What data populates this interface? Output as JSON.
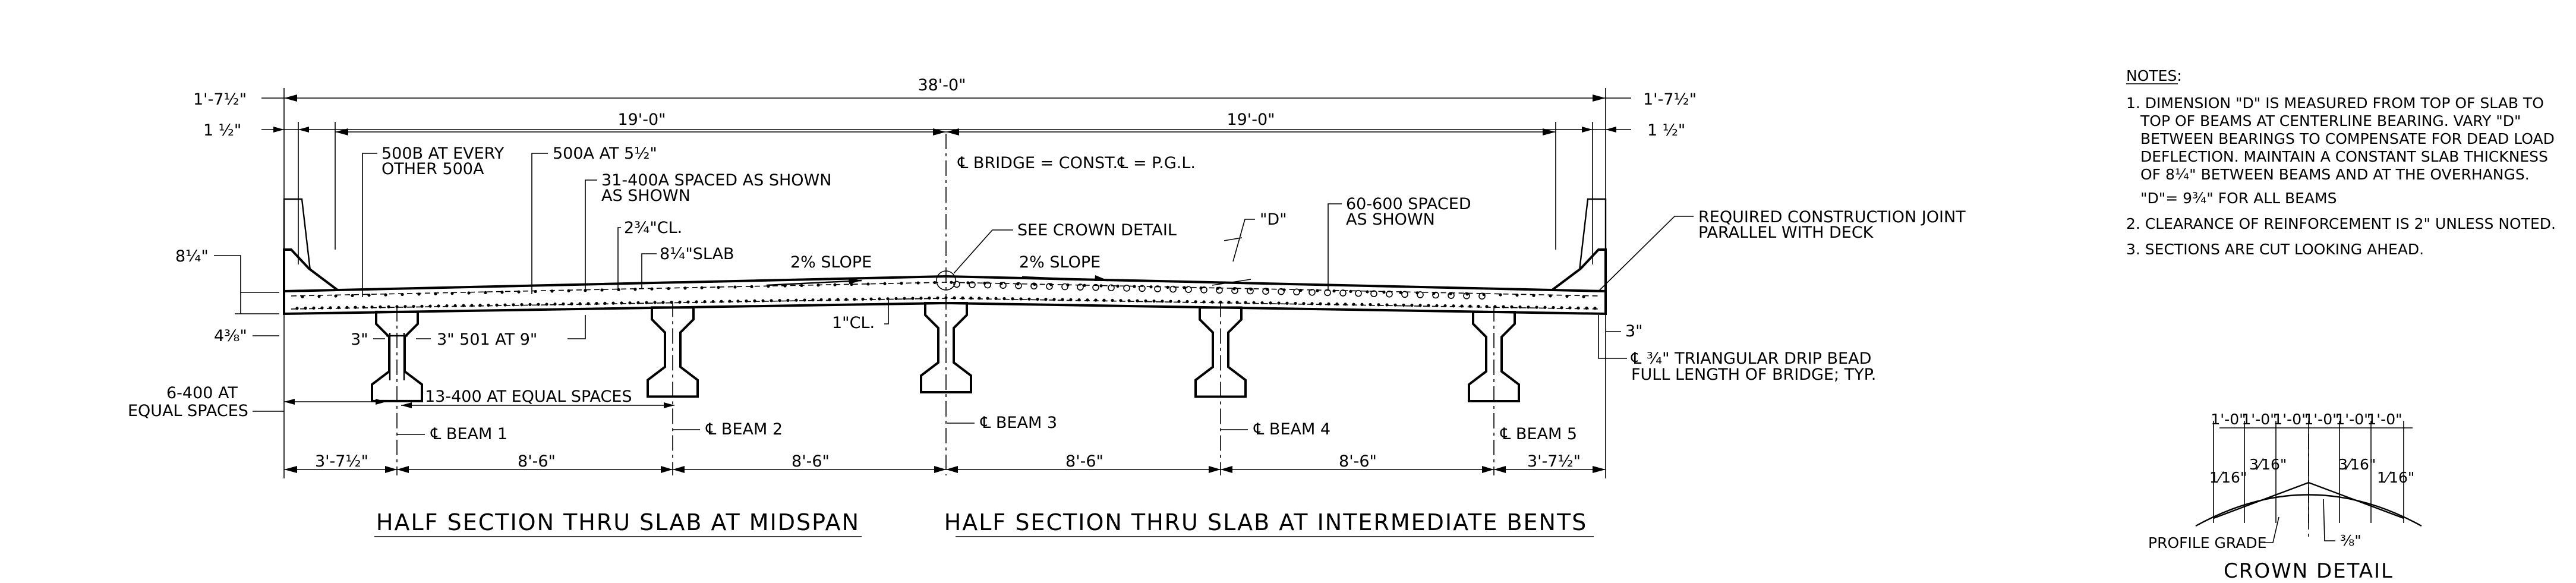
{
  "dims": {
    "overall": "38'-0\"",
    "left_overhang_top": "1'-7½\"",
    "right_overhang_top": "1'-7½\"",
    "left_barrier_offset": "1 ½\"",
    "right_barrier_offset": "1 ½\"",
    "left_half_width": "19'-0\"",
    "right_half_width": "19'-0\"",
    "slab_depth_left": "8¼\"",
    "dim_4_3_8": "4⅜\"",
    "dim_3_a": "3\"",
    "dim_3_b": "3\"",
    "dim_3_right": "3\"",
    "cl_1": "1\"CL.",
    "bottom_spans": [
      "3'-7½\"",
      "8'-6\"",
      "8'-6\"",
      "8'-6\"",
      "8'-6\"",
      "3'-7½\""
    ]
  },
  "labels": {
    "bar_500b_l1": "500B AT EVERY",
    "bar_500b_l2": "OTHER 500A",
    "bar_500a": "500A AT 5½\"",
    "bar_400a_l1": "31-400A SPACED AS SHOWN",
    "bar_400a_l2": "AS SHOWN",
    "clear_2_3_4": "2¾\"CL.",
    "slab_8_1_4": "8¼\"SLAB",
    "slope_left": "2% SLOPE",
    "slope_right": "2% SLOPE",
    "bridge_cl": "℄ BRIDGE = CONST.℄ = P.G.L.",
    "crown_detail_ref": "SEE CROWN DETAIL",
    "d_label": "\"D\"",
    "bar_600_l1": "60-600 SPACED",
    "bar_600_l2": "AS SHOWN",
    "joint_l1": "REQUIRED CONSTRUCTION JOINT",
    "joint_l2": "PARALLEL WITH DECK",
    "bar_501": "3\" 501 AT 9\"",
    "bar_6_400_l1": "6-400 AT",
    "bar_6_400_l2": "EQUAL SPACES",
    "bar_13_400": "13-400 AT EQUAL SPACES",
    "drip_l1": "℄ ¾\" TRIANGULAR DRIP BEAD",
    "drip_l2": "FULL LENGTH OF BRIDGE; TYP.",
    "beams": [
      "℄ BEAM 1",
      "℄ BEAM 2",
      "℄ BEAM 3",
      "℄ BEAM 4",
      "℄ BEAM 5"
    ]
  },
  "titles": {
    "midspan": "HALF SECTION THRU SLAB AT MIDSPAN",
    "bents": "HALF SECTION THRU SLAB AT INTERMEDIATE BENTS",
    "crown": "CROWN DETAIL"
  },
  "notes": {
    "heading": "NOTES:",
    "lines": [
      "1. DIMENSION \"D\" IS MEASURED FROM TOP OF SLAB TO",
      "TOP OF BEAMS AT CENTERLINE BEARING. VARY \"D\"",
      "BETWEEN BEARINGS TO COMPENSATE FOR DEAD LOAD",
      "DEFLECTION. MAINTAIN A CONSTANT SLAB THICKNESS",
      "OF 8¼\" BETWEEN BEAMS AND AT THE OVERHANGS.",
      "\"D\"= 9¾\" FOR ALL BEAMS",
      "2. CLEARANCE OF REINFORCEMENT IS 2\" UNLESS NOTED.",
      "3. SECTIONS ARE CUT LOOKING AHEAD."
    ]
  },
  "crown": {
    "top_dims": [
      "1'-0\"",
      "1'-0\"",
      "1'-0\"",
      "1'-0\"",
      "1'-0\"",
      "1'-0\""
    ],
    "frac_a": "1⁄16\"",
    "frac_b": "3⁄16\"",
    "frac_c": "3⁄16\"",
    "frac_d": "1⁄16\"",
    "frac_bottom": "⅜\"",
    "profile_grade": "PROFILE GRADE"
  }
}
